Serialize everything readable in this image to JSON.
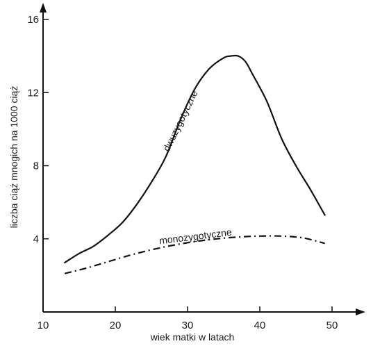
{
  "chart_data": {
    "type": "line",
    "xlabel": "wiek matki w latach",
    "ylabel": "liczba ciąż mnogich na 1000 ciąż",
    "xlim": [
      10,
      50
    ],
    "ylim": [
      0,
      16
    ],
    "xticks": [
      10,
      20,
      30,
      40,
      50
    ],
    "yticks": [
      4,
      8,
      12,
      16
    ],
    "grid": false,
    "legend": "none",
    "series": [
      {
        "name": "dwuzygotyczne",
        "style": "solid",
        "color": "#111111",
        "x": [
          13,
          15,
          17,
          19,
          21,
          23,
          25,
          27,
          29,
          31,
          33,
          35,
          36,
          37,
          38,
          39,
          41,
          43,
          45,
          47,
          49
        ],
        "y": [
          2.7,
          3.2,
          3.6,
          4.2,
          4.9,
          5.9,
          7.1,
          8.5,
          10.5,
          12.2,
          13.3,
          13.9,
          14.0,
          14.0,
          13.7,
          13.0,
          11.5,
          9.5,
          8.0,
          6.7,
          5.3
        ]
      },
      {
        "name": "monozygotyczne",
        "style": "dashdot",
        "color": "#111111",
        "x": [
          13,
          16,
          19,
          22,
          25,
          28,
          31,
          34,
          37,
          40,
          43,
          46,
          49
        ],
        "y": [
          2.1,
          2.4,
          2.75,
          3.1,
          3.4,
          3.65,
          3.85,
          4.0,
          4.1,
          4.15,
          4.15,
          4.05,
          3.75
        ]
      }
    ]
  }
}
